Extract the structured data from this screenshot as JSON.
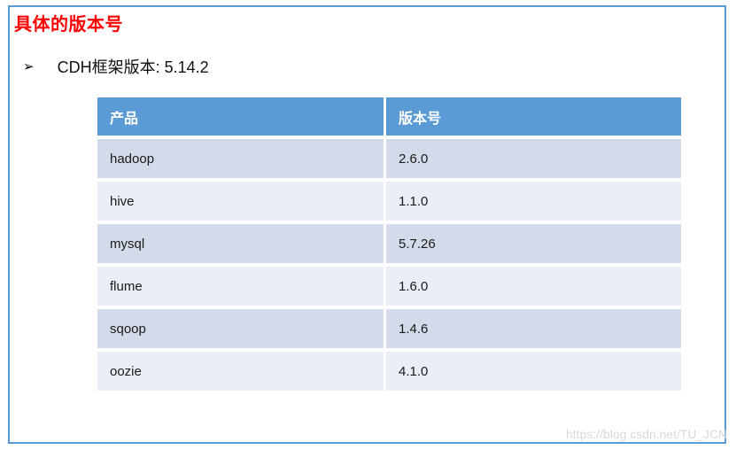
{
  "page": {
    "title": "具体的版本号",
    "bullet": {
      "marker": "➢",
      "text": "CDH框架版本: 5.14.2"
    },
    "watermark": "https://blog.csdn.net/TU_JCN",
    "colors": {
      "frame_border": "#5B9BD5",
      "title_red": "#FF0000",
      "table_header_bg": "#5B9BD5",
      "row_band_dark": "#D3DBEA",
      "row_band_light": "#EAEEF6",
      "watermark_gray": "#D8D8D8"
    }
  },
  "table": {
    "columns": [
      "产品",
      "版本号"
    ],
    "rows": [
      [
        "hadoop",
        "2.6.0"
      ],
      [
        "hive",
        "1.1.0"
      ],
      [
        "mysql",
        "5.7.26"
      ],
      [
        "flume",
        "1.6.0"
      ],
      [
        "sqoop",
        "1.4.6"
      ],
      [
        "oozie",
        "4.1.0"
      ]
    ]
  }
}
